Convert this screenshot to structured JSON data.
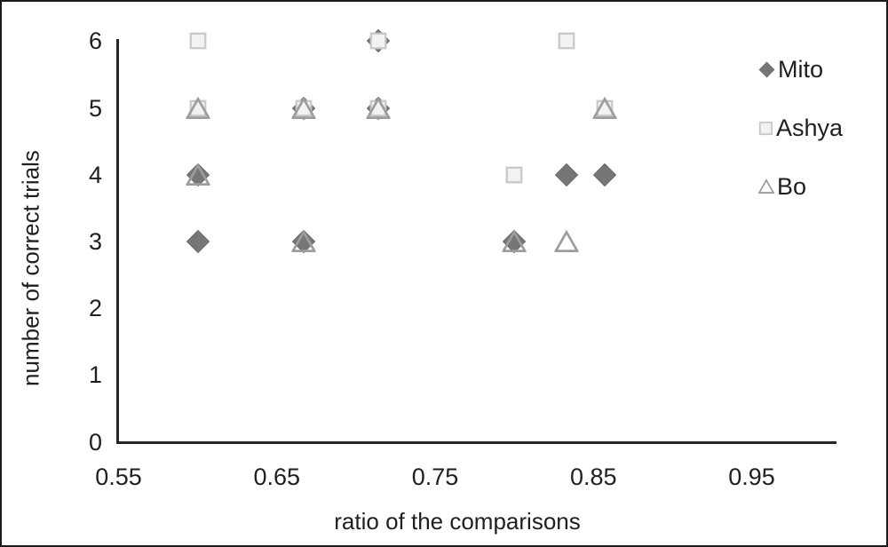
{
  "chart_data": {
    "type": "scatter",
    "title": "",
    "xlabel": "ratio of the comparisons",
    "ylabel": "number of correct trials",
    "xlim": [
      0.55,
      0.95
    ],
    "ylim": [
      0,
      6
    ],
    "xtick_labels": [
      "0.55",
      "0.65",
      "0.75",
      "0.85",
      "0.95"
    ],
    "xtick_values": [
      0.55,
      0.65,
      0.75,
      0.85,
      0.95
    ],
    "ytick_labels": [
      "0",
      "1",
      "2",
      "3",
      "4",
      "5",
      "6"
    ],
    "ytick_values": [
      0,
      1,
      2,
      3,
      4,
      5,
      6
    ],
    "grid": false,
    "legend_position": "right",
    "axis_color": "#262626",
    "text_color": "#1f1f1f",
    "series": [
      {
        "name": "Mito",
        "marker": "diamond",
        "fill": "#767676",
        "stroke": "#6a6a6a",
        "points": [
          [
            0.6,
            4
          ],
          [
            0.6,
            3
          ],
          [
            0.667,
            5
          ],
          [
            0.667,
            3
          ],
          [
            0.714,
            6
          ],
          [
            0.714,
            5
          ],
          [
            0.8,
            3
          ],
          [
            0.833,
            4
          ],
          [
            0.857,
            4
          ]
        ]
      },
      {
        "name": "Ashya",
        "marker": "square",
        "fill": "#f2f2f2",
        "stroke": "#c8c8c8",
        "points": [
          [
            0.6,
            6
          ],
          [
            0.6,
            5
          ],
          [
            0.667,
            5
          ],
          [
            0.714,
            6
          ],
          [
            0.714,
            5
          ],
          [
            0.8,
            4
          ],
          [
            0.833,
            6
          ],
          [
            0.857,
            5
          ]
        ]
      },
      {
        "name": "Bo",
        "marker": "triangle",
        "fill": "none",
        "stroke": "#9d9d9d",
        "points": [
          [
            0.6,
            5
          ],
          [
            0.6,
            4
          ],
          [
            0.667,
            5
          ],
          [
            0.667,
            3
          ],
          [
            0.714,
            5
          ],
          [
            0.8,
            3
          ],
          [
            0.833,
            3
          ],
          [
            0.857,
            5
          ]
        ]
      }
    ]
  }
}
